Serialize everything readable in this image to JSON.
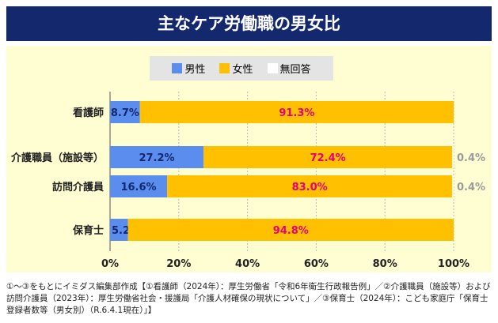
{
  "chart_data": {
    "type": "bar",
    "stacked": true,
    "orientation": "horizontal",
    "title": "主なケア労働職の男女比",
    "legend": [
      {
        "name": "男性",
        "color": "#5b8def"
      },
      {
        "name": "女性",
        "color": "#ffc000"
      },
      {
        "name": "無回答",
        "color": "#ffffff"
      }
    ],
    "categories": [
      "看護師",
      "介護職員（施設等）",
      "訪問介護員",
      "保育士"
    ],
    "series": [
      {
        "name": "男性",
        "values": [
          8.7,
          27.2,
          16.6,
          5.2
        ],
        "labels": [
          "8.7%",
          "27.2%",
          "16.6%",
          "5.2%"
        ]
      },
      {
        "name": "女性",
        "values": [
          91.3,
          72.4,
          83.0,
          94.8
        ],
        "labels": [
          "91.3%",
          "72.4%",
          "83.0%",
          "94.8%"
        ]
      },
      {
        "name": "無回答",
        "values": [
          0,
          0.4,
          0.4,
          0
        ],
        "labels": [
          "",
          "0.4%",
          "0.4%",
          ""
        ]
      }
    ],
    "xlim": [
      0,
      100
    ],
    "xticks": [
      "0%",
      "20%",
      "40%",
      "60%",
      "80%",
      "100%"
    ],
    "grid": true,
    "legend_position": "top-center"
  },
  "note": "①〜③をもとにイミダス編集部作成【①看護師（2024年）：厚生労働省「令和6年衛生行政報告例」／②介護職員（施設等）および訪問介護員（2023年）：厚生労働省社会・援護局「介護人材確保の現状について」／③保育士（2024年）：こども家庭庁「保育士登録者数等（男女別）（R.6.4.1現在）」】"
}
